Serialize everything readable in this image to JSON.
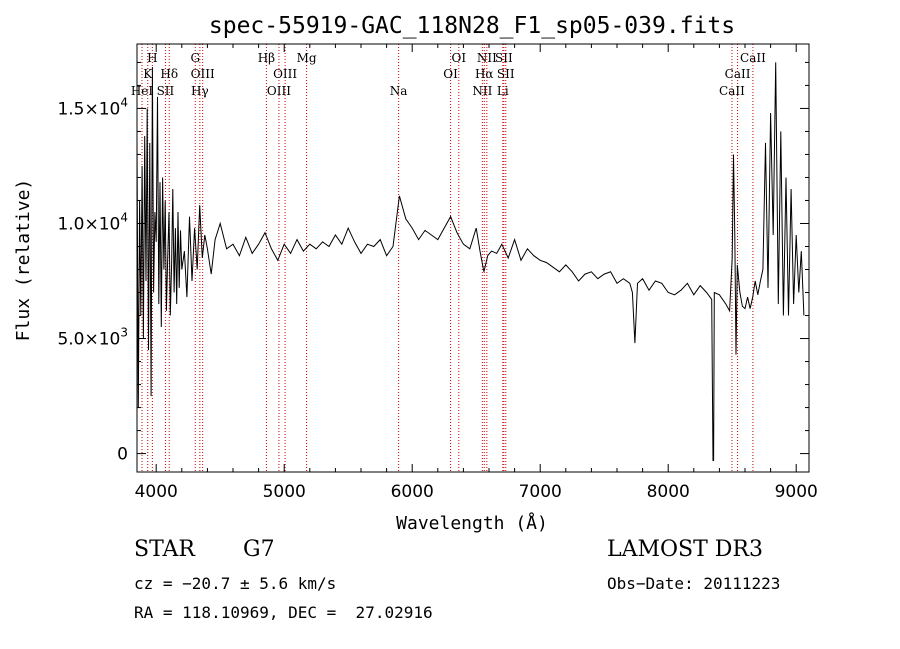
{
  "chart_data": {
    "type": "line",
    "title": "spec-55919-GAC_118N28_F1_sp05-039.fits",
    "xlabel": "Wavelength (Å)",
    "ylabel": "Flux (relative)",
    "xlim": [
      3850,
      9100
    ],
    "ylim": [
      -800,
      17800
    ],
    "x_ticks": [
      4000,
      5000,
      6000,
      7000,
      8000,
      9000
    ],
    "y_ticks": [
      {
        "value": 0,
        "base": "0",
        "exp": ""
      },
      {
        "value": 5000,
        "base": "5.0×10",
        "exp": "3"
      },
      {
        "value": 10000,
        "base": "1.0×10",
        "exp": "4"
      },
      {
        "value": 15000,
        "base": "1.5×10",
        "exp": "4"
      }
    ],
    "line_color": "#000000",
    "marker_color": "#cc0000",
    "spectral_lines": [
      {
        "label": "H",
        "wavelength": 3970,
        "row": 0
      },
      {
        "label": "K",
        "wavelength": 3934,
        "row": 1
      },
      {
        "label": "HeI",
        "wavelength": 3889,
        "row": 2
      },
      {
        "label": "SII",
        "wavelength": 4072,
        "row": 2
      },
      {
        "label": "Hδ",
        "wavelength": 4102,
        "row": 1
      },
      {
        "label": "G",
        "wavelength": 4305,
        "row": 0
      },
      {
        "label": "OIII",
        "wavelength": 4363,
        "row": 1
      },
      {
        "label": "Hγ",
        "wavelength": 4341,
        "row": 2
      },
      {
        "label": "Hβ",
        "wavelength": 4861,
        "row": 0
      },
      {
        "label": "OIII",
        "wavelength": 4959,
        "row": 2
      },
      {
        "label": "OIII",
        "wavelength": 5007,
        "row": 1
      },
      {
        "label": "Mg",
        "wavelength": 5175,
        "row": 0
      },
      {
        "label": "Na",
        "wavelength": 5894,
        "row": 2
      },
      {
        "label": "OI",
        "wavelength": 6300,
        "row": 1
      },
      {
        "label": "OI",
        "wavelength": 6364,
        "row": 0
      },
      {
        "label": "NII",
        "wavelength": 6548,
        "row": 2
      },
      {
        "label": "Hα",
        "wavelength": 6563,
        "row": 1
      },
      {
        "label": "NII",
        "wavelength": 6583,
        "row": 0
      },
      {
        "label": "Li",
        "wavelength": 6708,
        "row": 2
      },
      {
        "label": "SII",
        "wavelength": 6716,
        "row": 0
      },
      {
        "label": "SII",
        "wavelength": 6731,
        "row": 1
      },
      {
        "label": "CaII",
        "wavelength": 8498,
        "row": 2
      },
      {
        "label": "CaII",
        "wavelength": 8542,
        "row": 1
      },
      {
        "label": "CaII",
        "wavelength": 8662,
        "row": 0
      }
    ],
    "series": [
      {
        "x": [
          3850,
          3860,
          3870,
          3880,
          3890,
          3900,
          3910,
          3920,
          3930,
          3940,
          3950,
          3960,
          3970,
          3980,
          3990,
          4000,
          4010,
          4020,
          4030,
          4040,
          4050,
          4060,
          4070,
          4080,
          4090,
          4100,
          4110,
          4120,
          4130,
          4140,
          4150,
          4160,
          4170,
          4180,
          4190,
          4200,
          4220,
          4240,
          4260,
          4280,
          4300,
          4320,
          4340,
          4360,
          4380,
          4400,
          4430,
          4460,
          4500,
          4550,
          4600,
          4650,
          4700,
          4750,
          4800,
          4850,
          4900,
          4950,
          5000,
          5050,
          5100,
          5150,
          5200,
          5250,
          5300,
          5350,
          5400,
          5450,
          5500,
          5550,
          5600,
          5650,
          5700,
          5750,
          5800,
          5850,
          5900,
          5950,
          6000,
          6050,
          6100,
          6150,
          6200,
          6250,
          6300,
          6350,
          6400,
          6450,
          6500,
          6530,
          6560,
          6590,
          6620,
          6660,
          6700,
          6750,
          6800,
          6850,
          6900,
          6950,
          7000,
          7050,
          7100,
          7150,
          7200,
          7250,
          7300,
          7350,
          7400,
          7450,
          7500,
          7550,
          7600,
          7650,
          7700,
          7720,
          7740,
          7760,
          7800,
          7850,
          7900,
          7950,
          8000,
          8050,
          8100,
          8150,
          8200,
          8250,
          8300,
          8340,
          8350,
          8355,
          8360,
          8400,
          8450,
          8480,
          8500,
          8510,
          8520,
          8530,
          8540,
          8560,
          8580,
          8600,
          8620,
          8640,
          8660,
          8680,
          8700,
          8720,
          8740,
          8760,
          8780,
          8800,
          8820,
          8840,
          8860,
          8880,
          8900,
          8920,
          8940,
          8960,
          8980,
          9000,
          9020,
          9040,
          9060
        ],
        "y": [
          13500,
          2000,
          11000,
          6000,
          12500,
          5000,
          13800,
          7500,
          15000,
          4500,
          13500,
          2500,
          16800,
          7000,
          10500,
          9200,
          15500,
          6500,
          11800,
          5500,
          12000,
          8000,
          11000,
          6200,
          8500,
          10500,
          6000,
          8200,
          11500,
          7000,
          9800,
          6500,
          10500,
          7200,
          9700,
          8000,
          8800,
          6800,
          10300,
          7500,
          9800,
          8000,
          10800,
          8500,
          9500,
          8900,
          7800,
          9300,
          10000,
          8900,
          9100,
          8600,
          9400,
          8700,
          9100,
          9600,
          8900,
          8400,
          9100,
          8700,
          9300,
          8800,
          9100,
          8900,
          9200,
          9000,
          9500,
          9100,
          9800,
          9200,
          8700,
          9100,
          9000,
          9300,
          8600,
          9000,
          11200,
          10200,
          9800,
          9300,
          9700,
          9500,
          9300,
          9800,
          10300,
          9600,
          9100,
          8900,
          9800,
          8800,
          7900,
          8600,
          8800,
          8700,
          9100,
          8500,
          9300,
          8400,
          8900,
          8600,
          8400,
          8300,
          8100,
          7900,
          8200,
          7900,
          7500,
          7800,
          7900,
          7600,
          7800,
          7900,
          7400,
          7600,
          7400,
          7000,
          4800,
          7400,
          7600,
          7100,
          7500,
          7400,
          7000,
          6900,
          7100,
          7400,
          6900,
          7300,
          7000,
          6700,
          -300,
          -300,
          7000,
          6900,
          6500,
          6200,
          8500,
          13000,
          9500,
          4300,
          8200,
          7000,
          6400,
          6300,
          6800,
          6300,
          6800,
          7500,
          6900,
          7500,
          8000,
          13500,
          7200,
          14800,
          9500,
          17000,
          6500,
          14000,
          6000,
          12000,
          6000,
          11500,
          6500,
          9500,
          7000,
          8800,
          6000
        ]
      }
    ],
    "grid": false
  },
  "info": {
    "class_label": "STAR",
    "subclass": "G7",
    "survey": "LAMOST DR3",
    "velocity": "cz = −20.7 ± 5.6 km/s",
    "obs_date": "Obs−Date: 20111223",
    "coords": "RA = 118.10969, DEC =  27.02916"
  }
}
